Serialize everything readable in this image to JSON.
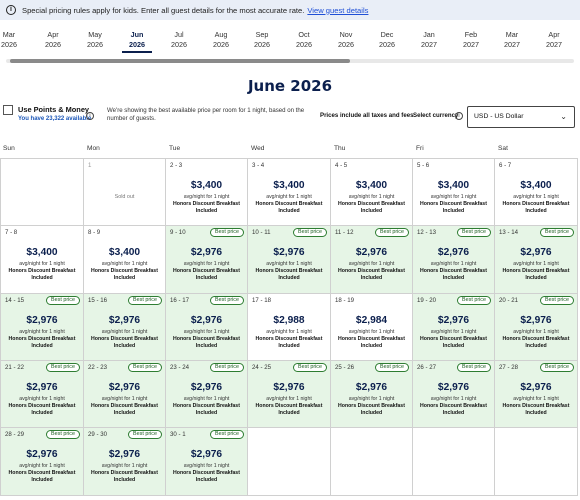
{
  "notice": {
    "text": "Special pricing rules apply for kids. Enter all guest details for the most accurate rate.",
    "link": "View guest details"
  },
  "months": [
    {
      "m": "Mar",
      "y": "2026",
      "active": false
    },
    {
      "m": "Apr",
      "y": "2026",
      "active": false
    },
    {
      "m": "May",
      "y": "2026",
      "active": false
    },
    {
      "m": "Jun",
      "y": "2026",
      "active": true
    },
    {
      "m": "Jul",
      "y": "2026",
      "active": false
    },
    {
      "m": "Aug",
      "y": "2026",
      "active": false
    },
    {
      "m": "Sep",
      "y": "2026",
      "active": false
    },
    {
      "m": "Oct",
      "y": "2026",
      "active": false
    },
    {
      "m": "Nov",
      "y": "2026",
      "active": false
    },
    {
      "m": "Dec",
      "y": "2026",
      "active": false
    },
    {
      "m": "Jan",
      "y": "2027",
      "active": false
    },
    {
      "m": "Feb",
      "y": "2027",
      "active": false
    },
    {
      "m": "Mar",
      "y": "2027",
      "active": false
    },
    {
      "m": "Apr",
      "y": "2027",
      "active": false
    }
  ],
  "title": "June 2026",
  "points": {
    "label": "Use Points & Money",
    "available": "You have 23,322 available"
  },
  "best_note": "We're showing the best available price per room for 1 night, based on the number of guests.",
  "taxes_note": "Prices include all taxes and fees",
  "currency": {
    "label": "Select currency",
    "value": "USD - US Dollar"
  },
  "weekdays": [
    "Sun",
    "Mon",
    "Tue",
    "Wed",
    "Thu",
    "Fri",
    "Sat"
  ],
  "labels": {
    "per_night": "avg/night for 1 night",
    "rate": "Honors Discount Breakfast",
    "included": "Included",
    "best": "Best price",
    "sold_out": "Sold out"
  },
  "days": [
    {
      "date": "1",
      "sold": true
    },
    {
      "date": "2 - 3",
      "price": "$3,400"
    },
    {
      "date": "3 - 4",
      "price": "$3,400"
    },
    {
      "date": "4 - 5",
      "price": "$3,400"
    },
    {
      "date": "5 - 6",
      "price": "$3,400"
    },
    {
      "date": "6 - 7",
      "price": "$3,400"
    },
    {
      "date": "7 - 8",
      "price": "$3,400"
    },
    {
      "date": "8 - 9",
      "price": "$3,400"
    },
    {
      "date": "9 - 10",
      "price": "$2,976",
      "best": true
    },
    {
      "date": "10 - 11",
      "price": "$2,976",
      "best": true
    },
    {
      "date": "11 - 12",
      "price": "$2,976",
      "best": true
    },
    {
      "date": "12 - 13",
      "price": "$2,976",
      "best": true
    },
    {
      "date": "13 - 14",
      "price": "$2,976",
      "best": true
    },
    {
      "date": "14 - 15",
      "price": "$2,976",
      "best": true
    },
    {
      "date": "15 - 16",
      "price": "$2,976",
      "best": true
    },
    {
      "date": "16 - 17",
      "price": "$2,976",
      "best": true
    },
    {
      "date": "17 - 18",
      "price": "$2,988"
    },
    {
      "date": "18 - 19",
      "price": "$2,984"
    },
    {
      "date": "19 - 20",
      "price": "$2,976",
      "best": true
    },
    {
      "date": "20 - 21",
      "price": "$2,976",
      "best": true
    },
    {
      "date": "21 - 22",
      "price": "$2,976",
      "best": true
    },
    {
      "date": "22 - 23",
      "price": "$2,976",
      "best": true
    },
    {
      "date": "23 - 24",
      "price": "$2,976",
      "best": true
    },
    {
      "date": "24 - 25",
      "price": "$2,976",
      "best": true
    },
    {
      "date": "25 - 26",
      "price": "$2,976",
      "best": true
    },
    {
      "date": "26 - 27",
      "price": "$2,976",
      "best": true
    },
    {
      "date": "27 - 28",
      "price": "$2,976",
      "best": true
    },
    {
      "date": "28 - 29",
      "price": "$2,976",
      "best": true
    },
    {
      "date": "29 - 30",
      "price": "$2,976",
      "best": true
    },
    {
      "date": "30 - 1",
      "price": "$2,976",
      "best": true
    }
  ]
}
